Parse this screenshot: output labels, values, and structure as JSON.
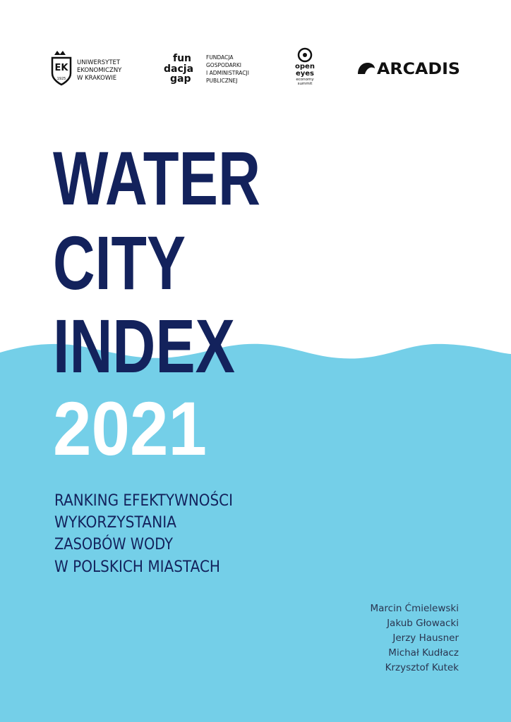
{
  "logos": {
    "uek": {
      "mark": "EK",
      "year": "1925",
      "lines": [
        "UNIWERSYTET",
        "EKONOMICZNY",
        "W KRAKOWIE"
      ]
    },
    "fundacja": {
      "mark": [
        "fun",
        "dacja",
        "gap"
      ],
      "lines": [
        "FUNDACJA",
        "GOSPODARKI",
        "I ADMINISTRACJI",
        "PUBLICZNEJ"
      ]
    },
    "oees": {
      "lines": [
        "open",
        "eyes",
        "economy",
        "summit"
      ]
    },
    "arcadis": {
      "name": "ARCADIS"
    }
  },
  "title": {
    "lines": [
      "WATER",
      "CITY",
      "INDEX"
    ],
    "year": "2021"
  },
  "subtitle": {
    "lines": [
      "RANKING EFEKTYWNOŚCI",
      "WYKORZYSTANIA",
      "ZASOBÓW WODY",
      "W POLSKICH MIASTACH"
    ]
  },
  "authors": [
    "Marcin Ćmielewski",
    "Jakub Głowacki",
    "Jerzy Hausner",
    "Michał Kudłacz",
    "Krzysztof Kutek"
  ]
}
